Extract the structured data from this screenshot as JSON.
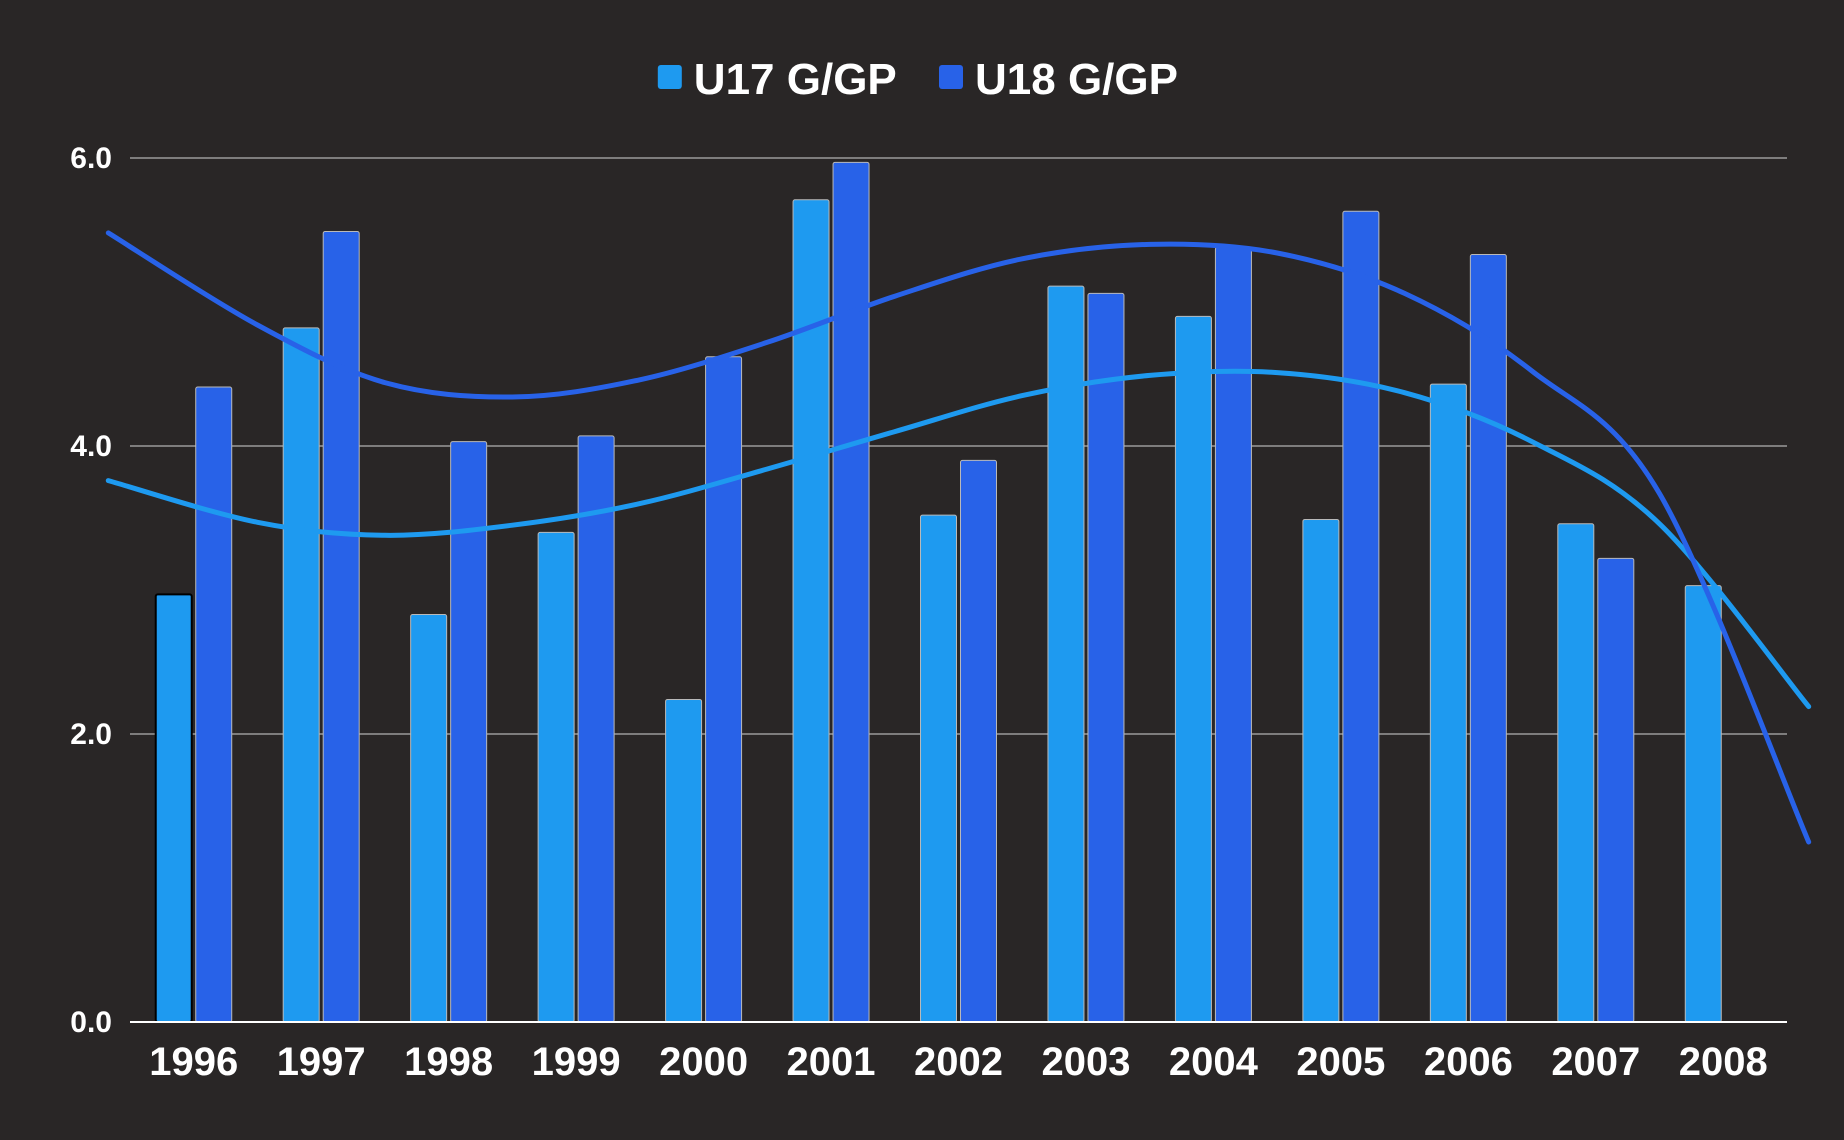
{
  "chart_data": {
    "type": "bar",
    "title": "",
    "xlabel": "",
    "ylabel": "",
    "categories": [
      "1996",
      "1997",
      "1998",
      "1999",
      "2000",
      "2001",
      "2002",
      "2003",
      "2004",
      "2005",
      "2006",
      "2007",
      "2008"
    ],
    "series": [
      {
        "name": "U17 G/GP",
        "color": "#1e9af0",
        "values": [
          2.97,
          4.82,
          2.83,
          3.4,
          2.24,
          5.71,
          3.52,
          5.11,
          4.9,
          3.49,
          4.43,
          3.46,
          3.03
        ]
      },
      {
        "name": "U18 G/GP",
        "color": "#2862e8",
        "values": [
          4.41,
          5.49,
          4.03,
          4.07,
          4.62,
          5.97,
          3.9,
          5.06,
          5.38,
          5.63,
          5.33,
          3.22,
          null
        ]
      }
    ],
    "trendlines": [
      {
        "series": "U17 G/GP",
        "type": "polynomial",
        "degree": 3,
        "color": "#1e9af0",
        "points": [
          [
            -0.67,
            3.76
          ],
          [
            0.5,
            3.47
          ],
          [
            1.5,
            3.38
          ],
          [
            2.5,
            3.45
          ],
          [
            3.5,
            3.6
          ],
          [
            4.5,
            3.84
          ],
          [
            5.5,
            4.1
          ],
          [
            6.5,
            4.35
          ],
          [
            7.5,
            4.49
          ],
          [
            8.5,
            4.51
          ],
          [
            9.5,
            4.37
          ],
          [
            10.5,
            4.03
          ],
          [
            11.5,
            3.46
          ],
          [
            12.67,
            2.19
          ]
        ]
      },
      {
        "series": "U18 G/GP",
        "type": "polynomial",
        "degree": 3,
        "color": "#2862e8",
        "points": [
          [
            -0.67,
            5.48
          ],
          [
            0.5,
            4.84
          ],
          [
            1.5,
            4.44
          ],
          [
            2.5,
            4.34
          ],
          [
            3.5,
            4.46
          ],
          [
            4.5,
            4.72
          ],
          [
            5.5,
            5.04
          ],
          [
            6.5,
            5.3
          ],
          [
            7.5,
            5.4
          ],
          [
            8.5,
            5.34
          ],
          [
            9.5,
            5.06
          ],
          [
            10.5,
            4.52
          ],
          [
            11.5,
            3.67
          ],
          [
            12.67,
            1.25
          ]
        ]
      }
    ],
    "y_ticks": [
      "0.0",
      "2.0",
      "4.0",
      "6.0"
    ],
    "ylim": [
      0,
      6
    ],
    "grid": true,
    "legend_position": "top-center",
    "background": "#292626",
    "grid_color": "#9a9a9a",
    "axis_color": "#ffffff",
    "text_color": "#ffffff"
  }
}
